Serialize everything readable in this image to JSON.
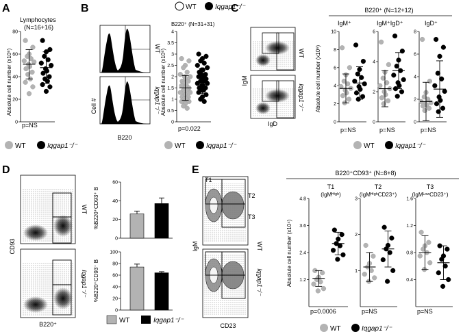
{
  "colors": {
    "wt": "#b3b3b3",
    "ko": "#000000",
    "axis": "#000000"
  },
  "panels": {
    "A": {
      "letter": "A",
      "title": "Lymphocytes",
      "n": "(N=16+16)",
      "ylabel": "Absolute cell number (x10⁶)",
      "pval": "p=NS"
    },
    "B": {
      "letter": "B",
      "subtitle": "B220⁺ (N=31+31)",
      "ylabel": "Absolute cell number (x10⁶)",
      "pval": "p=0.022",
      "hist_ylabel": "Cell #",
      "hist_xlabel": "B220",
      "row_wt": "WT",
      "row_ko": "Iqgap1⁻/⁻"
    },
    "C": {
      "letter": "C",
      "header": "B220⁺ (N=12+12)",
      "sub1": "IgM⁺",
      "sub2": "IgM⁺IgD⁺",
      "sub3": "IgD⁺",
      "ylabel": "Absolute cell number (x10⁶)",
      "pvals": [
        "p=NS",
        "p=NS",
        "p=NS"
      ],
      "flow_ylabel": "IgM",
      "flow_xlabel": "IgD",
      "row_wt": "WT",
      "row_ko": "Iqgap1⁻/⁻"
    },
    "D": {
      "letter": "D",
      "flow_ylabel": "CD93",
      "flow_xlabel": "B220⁺",
      "bar_ylabel_top": "%B220⁺CD93⁺ B",
      "bar_ylabel_bot": "%B220⁺CD93⁻ B",
      "row_wt": "WT",
      "row_ko": "Iqgap1⁻/⁻"
    },
    "E": {
      "letter": "E",
      "header": "B220⁺CD93⁺ (N=8+8)",
      "t1": "T1",
      "t1_sub": "(IgMᴴⁱᵍʰ)",
      "t2": "T2",
      "t2_sub": "(IgMᴴⁱᵍʰCD23⁺)",
      "t3": "T3",
      "t3_sub": "(IgMᴸᵒʷCD23⁺)",
      "ylabel": "Absolute cell number (x10⁴)",
      "pvals": [
        "p=0.0006",
        "p=NS",
        "p=NS"
      ],
      "flow_ylabel": "IgM",
      "flow_xlabel": "CD23",
      "gate_t1": "T1",
      "gate_t2": "T2",
      "gate_t3": "T3",
      "row_wt": "WT",
      "row_ko": "Iqgap1⁻/⁻"
    }
  },
  "legend": {
    "wt": "WT",
    "ko": "Iqgap1⁻/⁻"
  },
  "top_legend": {
    "wt": "WT",
    "ko": "Iqgap1⁻/⁻"
  },
  "chart_data": [
    {
      "id": "A",
      "type": "scatter",
      "title": "Lymphocytes (N=16+16)",
      "ylabel": "Absolute cell number (x10⁶)",
      "ylim": [
        0,
        80
      ],
      "yticks": [
        0,
        20,
        40,
        60,
        80
      ],
      "categories": [
        "WT",
        "Iqgap1⁻/⁻"
      ],
      "series": [
        {
          "name": "WT",
          "values": [
            72,
            66,
            60,
            58,
            56,
            54,
            53,
            51,
            49,
            47,
            44,
            42,
            38,
            35,
            31,
            25
          ],
          "mean": 51,
          "sd": 13
        },
        {
          "name": "Iqgap1⁻/⁻",
          "values": [
            72,
            64,
            62,
            58,
            55,
            52,
            50,
            47,
            45,
            43,
            40,
            38,
            36,
            33,
            31,
            27
          ],
          "mean": 48,
          "sd": 14
        }
      ],
      "p": "p=NS"
    },
    {
      "id": "B",
      "type": "scatter",
      "title": "B220⁺ (N=31+31)",
      "ylabel": "Absolute cell number (x10⁶)",
      "ylim": [
        0,
        4
      ],
      "yticks": [
        0,
        0.5,
        1,
        1.5,
        2,
        2.5,
        3,
        3.5,
        4
      ],
      "categories": [
        "WT",
        "Iqgap1⁻/⁻"
      ],
      "series": [
        {
          "name": "WT",
          "values": [
            2.8,
            2.7,
            2.5,
            2.4,
            2.2,
            2.1,
            2.0,
            2.0,
            1.9,
            1.8,
            1.8,
            1.7,
            1.6,
            1.6,
            1.5,
            1.5,
            1.4,
            1.4,
            1.3,
            1.3,
            1.2,
            1.2,
            1.1,
            1.1,
            1.0,
            1.0,
            0.9,
            0.9,
            0.8,
            0.7,
            0.6
          ],
          "mean": 1.5,
          "sd": 0.55
        },
        {
          "name": "Iqgap1⁻/⁻",
          "values": [
            3.0,
            2.9,
            2.8,
            2.7,
            2.6,
            2.5,
            2.4,
            2.3,
            2.3,
            2.2,
            2.1,
            2.1,
            2.0,
            2.0,
            1.9,
            1.9,
            1.8,
            1.8,
            1.7,
            1.7,
            1.6,
            1.6,
            1.5,
            1.5,
            1.4,
            1.4,
            1.3,
            1.2,
            1.1,
            1.0,
            0.9
          ],
          "mean": 1.8,
          "sd": 0.55
        }
      ],
      "p": "p=0.022"
    },
    {
      "id": "C1",
      "type": "scatter",
      "title": "IgM⁺",
      "ylabel": "Absolute cell number (x10⁶)",
      "ylim": [
        0,
        10
      ],
      "yticks": [
        0,
        2,
        4,
        6,
        8,
        10
      ],
      "categories": [
        "WT",
        "Iqgap1⁻/⁻"
      ],
      "series": [
        {
          "name": "WT",
          "values": [
            8.2,
            6.0,
            5.2,
            4.5,
            4.2,
            3.9,
            3.7,
            3.5,
            3.2,
            2.9,
            2.5,
            2.1
          ],
          "mean": 3.7,
          "sd": 1.6
        },
        {
          "name": "Iqgap1⁻/⁻",
          "values": [
            8.5,
            6.7,
            5.8,
            5.3,
            4.9,
            4.5,
            4.2,
            3.9,
            3.6,
            3.2,
            2.8,
            2.5
          ],
          "mean": 4.3,
          "sd": 1.8
        }
      ],
      "p": "p=NS"
    },
    {
      "id": "C2",
      "type": "scatter",
      "title": "IgM⁺IgD⁺",
      "ylabel": "",
      "ylim": [
        0,
        6
      ],
      "yticks": [
        0,
        2,
        4,
        6
      ],
      "categories": [
        "WT",
        "Iqgap1⁻/⁻"
      ],
      "series": [
        {
          "name": "WT",
          "values": [
            5.3,
            3.8,
            3.3,
            2.9,
            2.6,
            2.4,
            2.2,
            2.0,
            1.8,
            1.6,
            1.4,
            1.2
          ],
          "mean": 2.2,
          "sd": 1.2
        },
        {
          "name": "Iqgap1⁻/⁻",
          "values": [
            5.7,
            4.7,
            4.1,
            3.7,
            3.4,
            3.1,
            2.8,
            2.6,
            2.4,
            2.2,
            2.0,
            1.7
          ],
          "mean": 3.4,
          "sd": 1.2
        }
      ],
      "p": "p=NS"
    },
    {
      "id": "C3",
      "type": "scatter",
      "title": "IgD⁺",
      "ylabel": "",
      "ylim": [
        0,
        8
      ],
      "yticks": [
        0,
        2,
        4,
        6,
        8
      ],
      "categories": [
        "WT",
        "Iqgap1⁻/⁻"
      ],
      "series": [
        {
          "name": "WT",
          "values": [
            7.3,
            3.6,
            2.6,
            2.2,
            2.0,
            1.8,
            1.7,
            1.6,
            1.5,
            1.4,
            1.2,
            1.0
          ],
          "mean": 1.8,
          "sd": 1.7
        },
        {
          "name": "Iqgap1⁻/⁻",
          "values": [
            7.3,
            6.6,
            5.8,
            4.3,
            3.8,
            3.2,
            2.7,
            2.2,
            1.9,
            1.6,
            1.2,
            0.9
          ],
          "mean": 2.9,
          "sd": 2.5
        }
      ],
      "p": "p=NS"
    },
    {
      "id": "D1",
      "type": "bar",
      "title": "",
      "ylabel": "%B220⁺CD93⁺ B",
      "ylim": [
        0,
        60
      ],
      "yticks": [
        0,
        20,
        40,
        60
      ],
      "categories": [
        "WT",
        "Iqgap1⁻/⁻"
      ],
      "values": [
        26,
        37
      ],
      "errors": [
        3,
        6
      ]
    },
    {
      "id": "D2",
      "type": "bar",
      "title": "",
      "ylabel": "%B220⁺CD93⁻ B",
      "ylim": [
        0,
        100
      ],
      "yticks": [
        0,
        20,
        40,
        60,
        80,
        100
      ],
      "categories": [
        "WT",
        "Iqgap1⁻/⁻"
      ],
      "values": [
        74,
        64
      ],
      "errors": [
        5,
        2
      ]
    },
    {
      "id": "E1",
      "type": "scatter",
      "title": "T1 (IgMᴴⁱᵍʰ)",
      "ylabel": "Absolute cell number (x10⁴)",
      "ylim": [
        0,
        4.8
      ],
      "yticks": [
        1.2,
        2.4,
        3.6,
        4.8
      ],
      "categories": [
        "WT",
        "Iqgap1⁻/⁻"
      ],
      "series": [
        {
          "name": "WT",
          "values": [
            1.6,
            1.5,
            1.3,
            1.2,
            1.1,
            1.0,
            0.8,
            0.7
          ],
          "mean": 1.25,
          "sd": 0.35
        },
        {
          "name": "Iqgap1⁻/⁻",
          "values": [
            3.4,
            3.2,
            3.0,
            2.8,
            2.7,
            2.5,
            2.3,
            2.1
          ],
          "mean": 2.8,
          "sd": 0.5
        }
      ],
      "p": "p=0.0006"
    },
    {
      "id": "E2",
      "type": "scatter",
      "title": "T2 (IgMᴴⁱᵍʰCD23⁺)",
      "ylabel": "",
      "ylim": [
        0,
        3
      ],
      "yticks": [
        1,
        2,
        3
      ],
      "categories": [
        "WT",
        "Iqgap1⁻/⁻"
      ],
      "series": [
        {
          "name": "WT",
          "values": [
            1.7,
            1.4,
            1.2,
            1.1,
            1.0,
            0.9,
            0.8,
            0.7
          ],
          "mean": 1.1,
          "sd": 0.4
        },
        {
          "name": "Iqgap1⁻/⁻",
          "values": [
            2.2,
            1.9,
            1.7,
            1.6,
            1.5,
            1.3,
            1.0,
            0.7
          ],
          "mean": 1.6,
          "sd": 0.5
        }
      ],
      "p": "p=NS"
    },
    {
      "id": "E3",
      "type": "scatter",
      "title": "T3 (IgMᴸᵒʷCD23⁺)",
      "ylabel": "",
      "ylim": [
        0,
        1.6
      ],
      "yticks": [
        0.4,
        0.8,
        1.2,
        1.6
      ],
      "categories": [
        "WT",
        "Iqgap1⁻/⁻"
      ],
      "series": [
        {
          "name": "WT",
          "values": [
            1.1,
            0.95,
            0.9,
            0.85,
            0.8,
            0.75,
            0.65,
            0.55
          ],
          "mean": 0.8,
          "sd": 0.25
        },
        {
          "name": "Iqgap1⁻/⁻",
          "values": [
            0.9,
            0.85,
            0.75,
            0.7,
            0.6,
            0.5,
            0.4,
            0.3
          ],
          "mean": 0.65,
          "sd": 0.25
        }
      ],
      "p": "p=NS"
    }
  ]
}
